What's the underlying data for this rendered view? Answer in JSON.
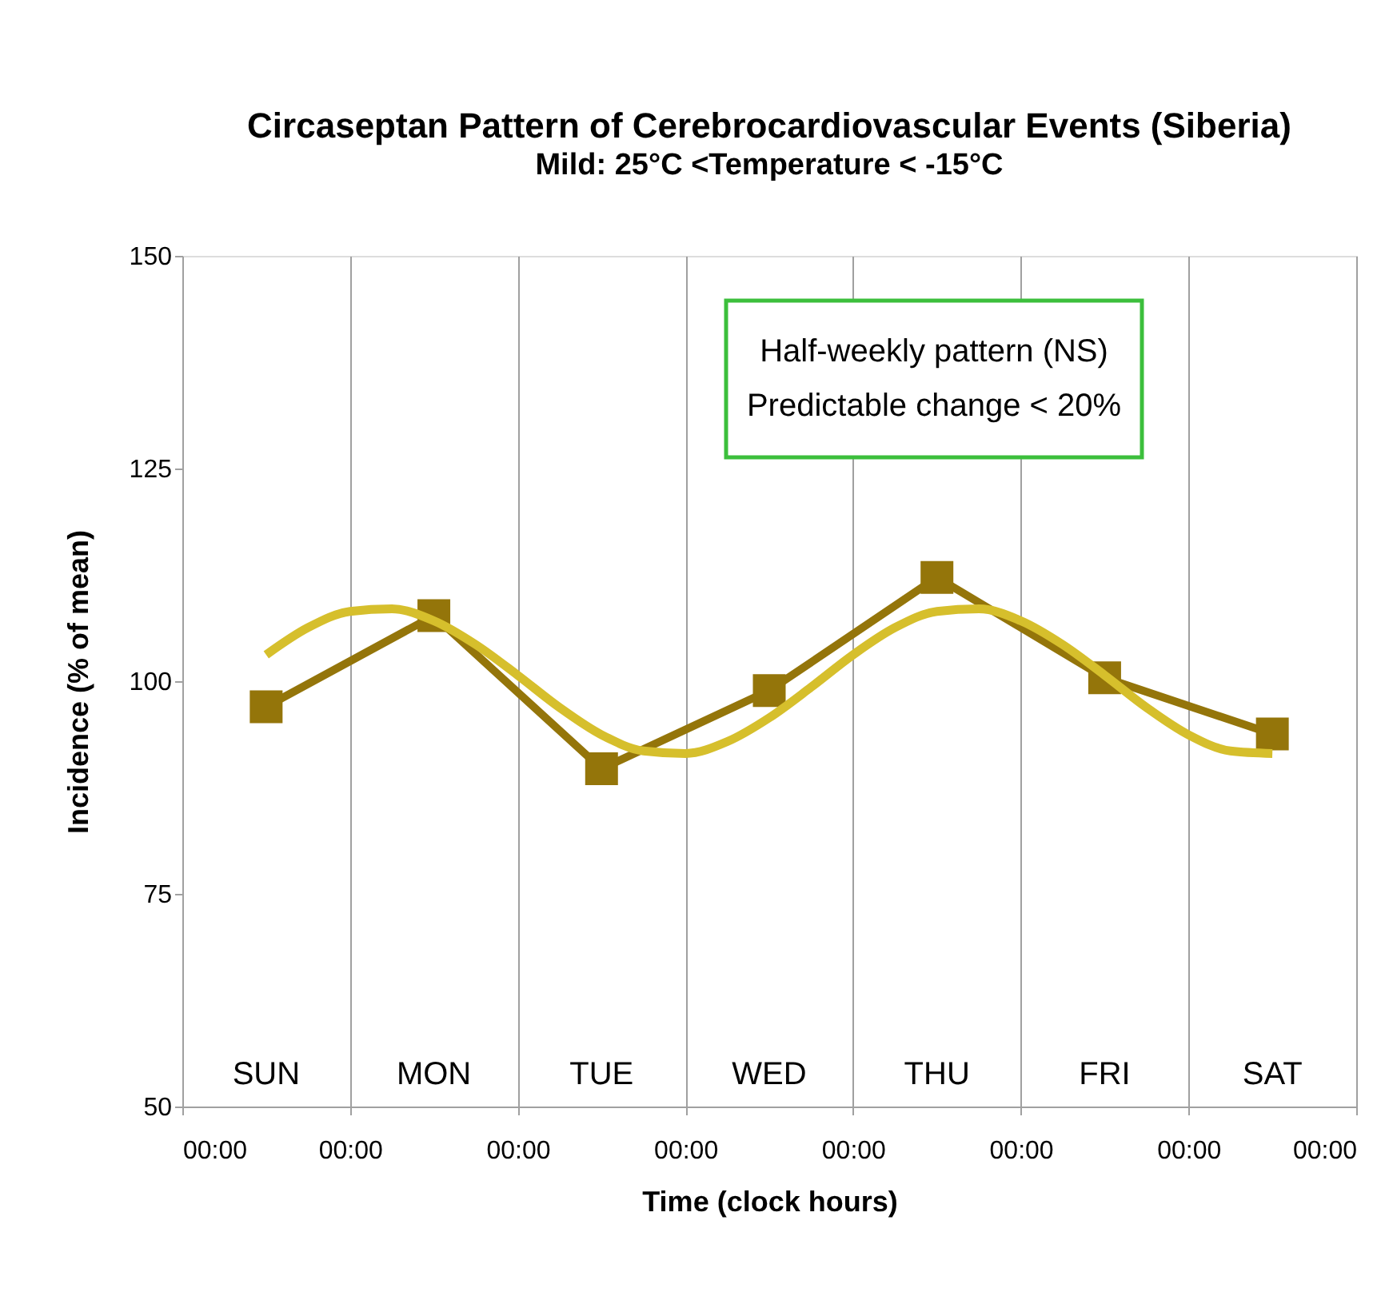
{
  "chart_data": {
    "type": "line",
    "title": "Circaseptan Pattern of Cerebrocardiovascular Events (Siberia)",
    "subtitle": "Mild:  25°C <Temperature < -15°C",
    "xlabel": "Time (clock hours)",
    "ylabel": "Incidence (% of mean)",
    "x": [
      0.5,
      1.5,
      2.5,
      3.5,
      4.5,
      5.5,
      6.5
    ],
    "series": [
      {
        "color": "#94750a",
        "values": [
          97.0,
          107.7,
          89.7,
          98.9,
          112.2,
          100.4,
          93.8
        ]
      },
      {
        "type": "line",
        "marker": "none",
        "color": "#d6bf2c",
        "x": [
          0.5,
          0.75,
          1.0,
          1.25,
          1.5,
          1.75,
          2.0,
          2.25,
          2.5,
          2.75,
          3.0,
          3.25,
          3.5,
          3.75,
          4.0,
          4.25,
          4.5,
          4.75,
          5.0,
          5.25,
          5.5,
          5.75,
          6.0,
          6.25,
          6.5
        ],
        "values": [
          103.1,
          106.3,
          108.2,
          108.5,
          107.1,
          104.3,
          100.7,
          96.9,
          93.7,
          91.8,
          91.5,
          92.9,
          95.7,
          99.3,
          103.1,
          106.3,
          108.2,
          108.5,
          107.1,
          104.3,
          100.7,
          96.9,
          93.7,
          91.8,
          91.5
        ]
      }
    ],
    "xlim": [
      0,
      7
    ],
    "xticks": [
      {
        "value": 0,
        "label": "00:00"
      },
      {
        "value": 1,
        "label": "00:00"
      },
      {
        "value": 2,
        "label": "00:00"
      },
      {
        "value": 3,
        "label": "00:00"
      },
      {
        "value": 4,
        "label": "00:00"
      },
      {
        "value": 5,
        "label": "00:00"
      },
      {
        "value": 6,
        "label": "00:00"
      },
      {
        "value": 7,
        "label": "00:00"
      }
    ],
    "ylim": [
      50,
      150
    ],
    "yticks": [
      50,
      75,
      100,
      125,
      150
    ],
    "grid": "x",
    "marker": "square",
    "line_style": "solid",
    "annotations": [
      "SUN",
      "MON",
      "TUE",
      "WED",
      "THU",
      "FRI",
      "SAT",
      "Half-weekly pattern (NS)",
      "Predictable change < 20%"
    ]
  }
}
